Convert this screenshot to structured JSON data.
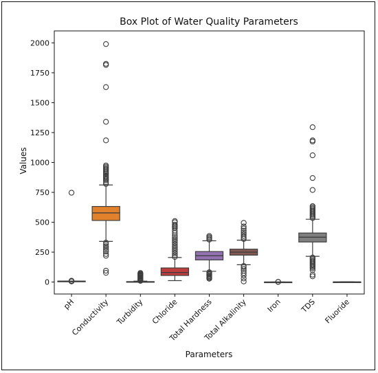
{
  "chart_data": {
    "type": "box",
    "title": "Box Plot of Water Quality Parameters",
    "xlabel": "Parameters",
    "ylabel": "Values",
    "ylim": [
      -100,
      2100
    ],
    "yticks": [
      0,
      250,
      500,
      750,
      1000,
      1250,
      1500,
      1750,
      2000
    ],
    "grid": false,
    "categories": [
      "pH",
      "Conductivity",
      "Turbidity",
      "Chloride",
      "Total Hardness",
      "Total Alkalinity",
      "Iron",
      "TDS",
      "Fluoride"
    ],
    "colors": [
      "#3a72b0",
      "#e1812c",
      "#3a923a",
      "#c03d3e",
      "#9372b2",
      "#845b53",
      "#d684bd",
      "#7f7f7f",
      "#a9aa35"
    ],
    "boxes": [
      {
        "name": "pH",
        "whisker_low": 6.5,
        "q1": 7.2,
        "median": 7.5,
        "q3": 7.9,
        "whisker_high": 8.6,
        "outliers": [
          5,
          8,
          11,
          747
        ]
      },
      {
        "name": "Conductivity",
        "whisker_low": 340,
        "q1": 515,
        "median": 578,
        "q3": 632,
        "whisker_high": 812,
        "outliers": [
          77,
          95,
          220,
          235,
          255,
          270,
          285,
          300,
          315,
          330,
          820,
          835,
          850,
          860,
          870,
          880,
          890,
          905,
          915,
          925,
          935,
          945,
          955,
          965,
          975,
          1185,
          1340,
          1630,
          1815,
          1825,
          1990
        ]
      },
      {
        "name": "Turbidity",
        "whisker_low": 0,
        "q1": 1,
        "median": 2,
        "q3": 4,
        "whisker_high": 8,
        "outliers": [
          10,
          14,
          18,
          22,
          28,
          34,
          40,
          46,
          52,
          58,
          64,
          70,
          76
        ]
      },
      {
        "name": "Chloride",
        "whisker_low": 12,
        "q1": 55,
        "median": 80,
        "q3": 118,
        "whisker_high": 205,
        "outliers": [
          210,
          225,
          240,
          255,
          270,
          285,
          300,
          315,
          330,
          345,
          360,
          375,
          390,
          410,
          430,
          450,
          460,
          470,
          480,
          500,
          510
        ]
      },
      {
        "name": "Total Hardness",
        "whisker_low": 90,
        "q1": 185,
        "median": 220,
        "q3": 255,
        "whisker_high": 345,
        "outliers": [
          28,
          35,
          42,
          50,
          58,
          66,
          74,
          82,
          355,
          365,
          375,
          385
        ]
      },
      {
        "name": "Total Alkalinity",
        "whisker_low": 145,
        "q1": 225,
        "median": 250,
        "q3": 275,
        "whisker_high": 350,
        "outliers": [
          5,
          30,
          55,
          75,
          95,
          110,
          125,
          135,
          360,
          372,
          385,
          400,
          415,
          430,
          448,
          465,
          495
        ]
      },
      {
        "name": "Iron",
        "whisker_low": 0,
        "q1": 0.1,
        "median": 0.2,
        "q3": 0.4,
        "whisker_high": 0.8,
        "outliers": [
          1,
          2
        ]
      },
      {
        "name": "TDS",
        "whisker_low": 215,
        "q1": 335,
        "median": 375,
        "q3": 410,
        "whisker_high": 525,
        "outliers": [
          48,
          62,
          100,
          115,
          125,
          135,
          145,
          155,
          165,
          175,
          185,
          195,
          205,
          535,
          545,
          555,
          565,
          575,
          585,
          595,
          605,
          615,
          625,
          635,
          770,
          870,
          1060,
          1175,
          1185,
          1295
        ]
      },
      {
        "name": "Fluoride",
        "whisker_low": 0.2,
        "q1": 0.5,
        "median": 0.8,
        "q3": 1.1,
        "whisker_high": 1.8,
        "outliers": []
      }
    ]
  }
}
